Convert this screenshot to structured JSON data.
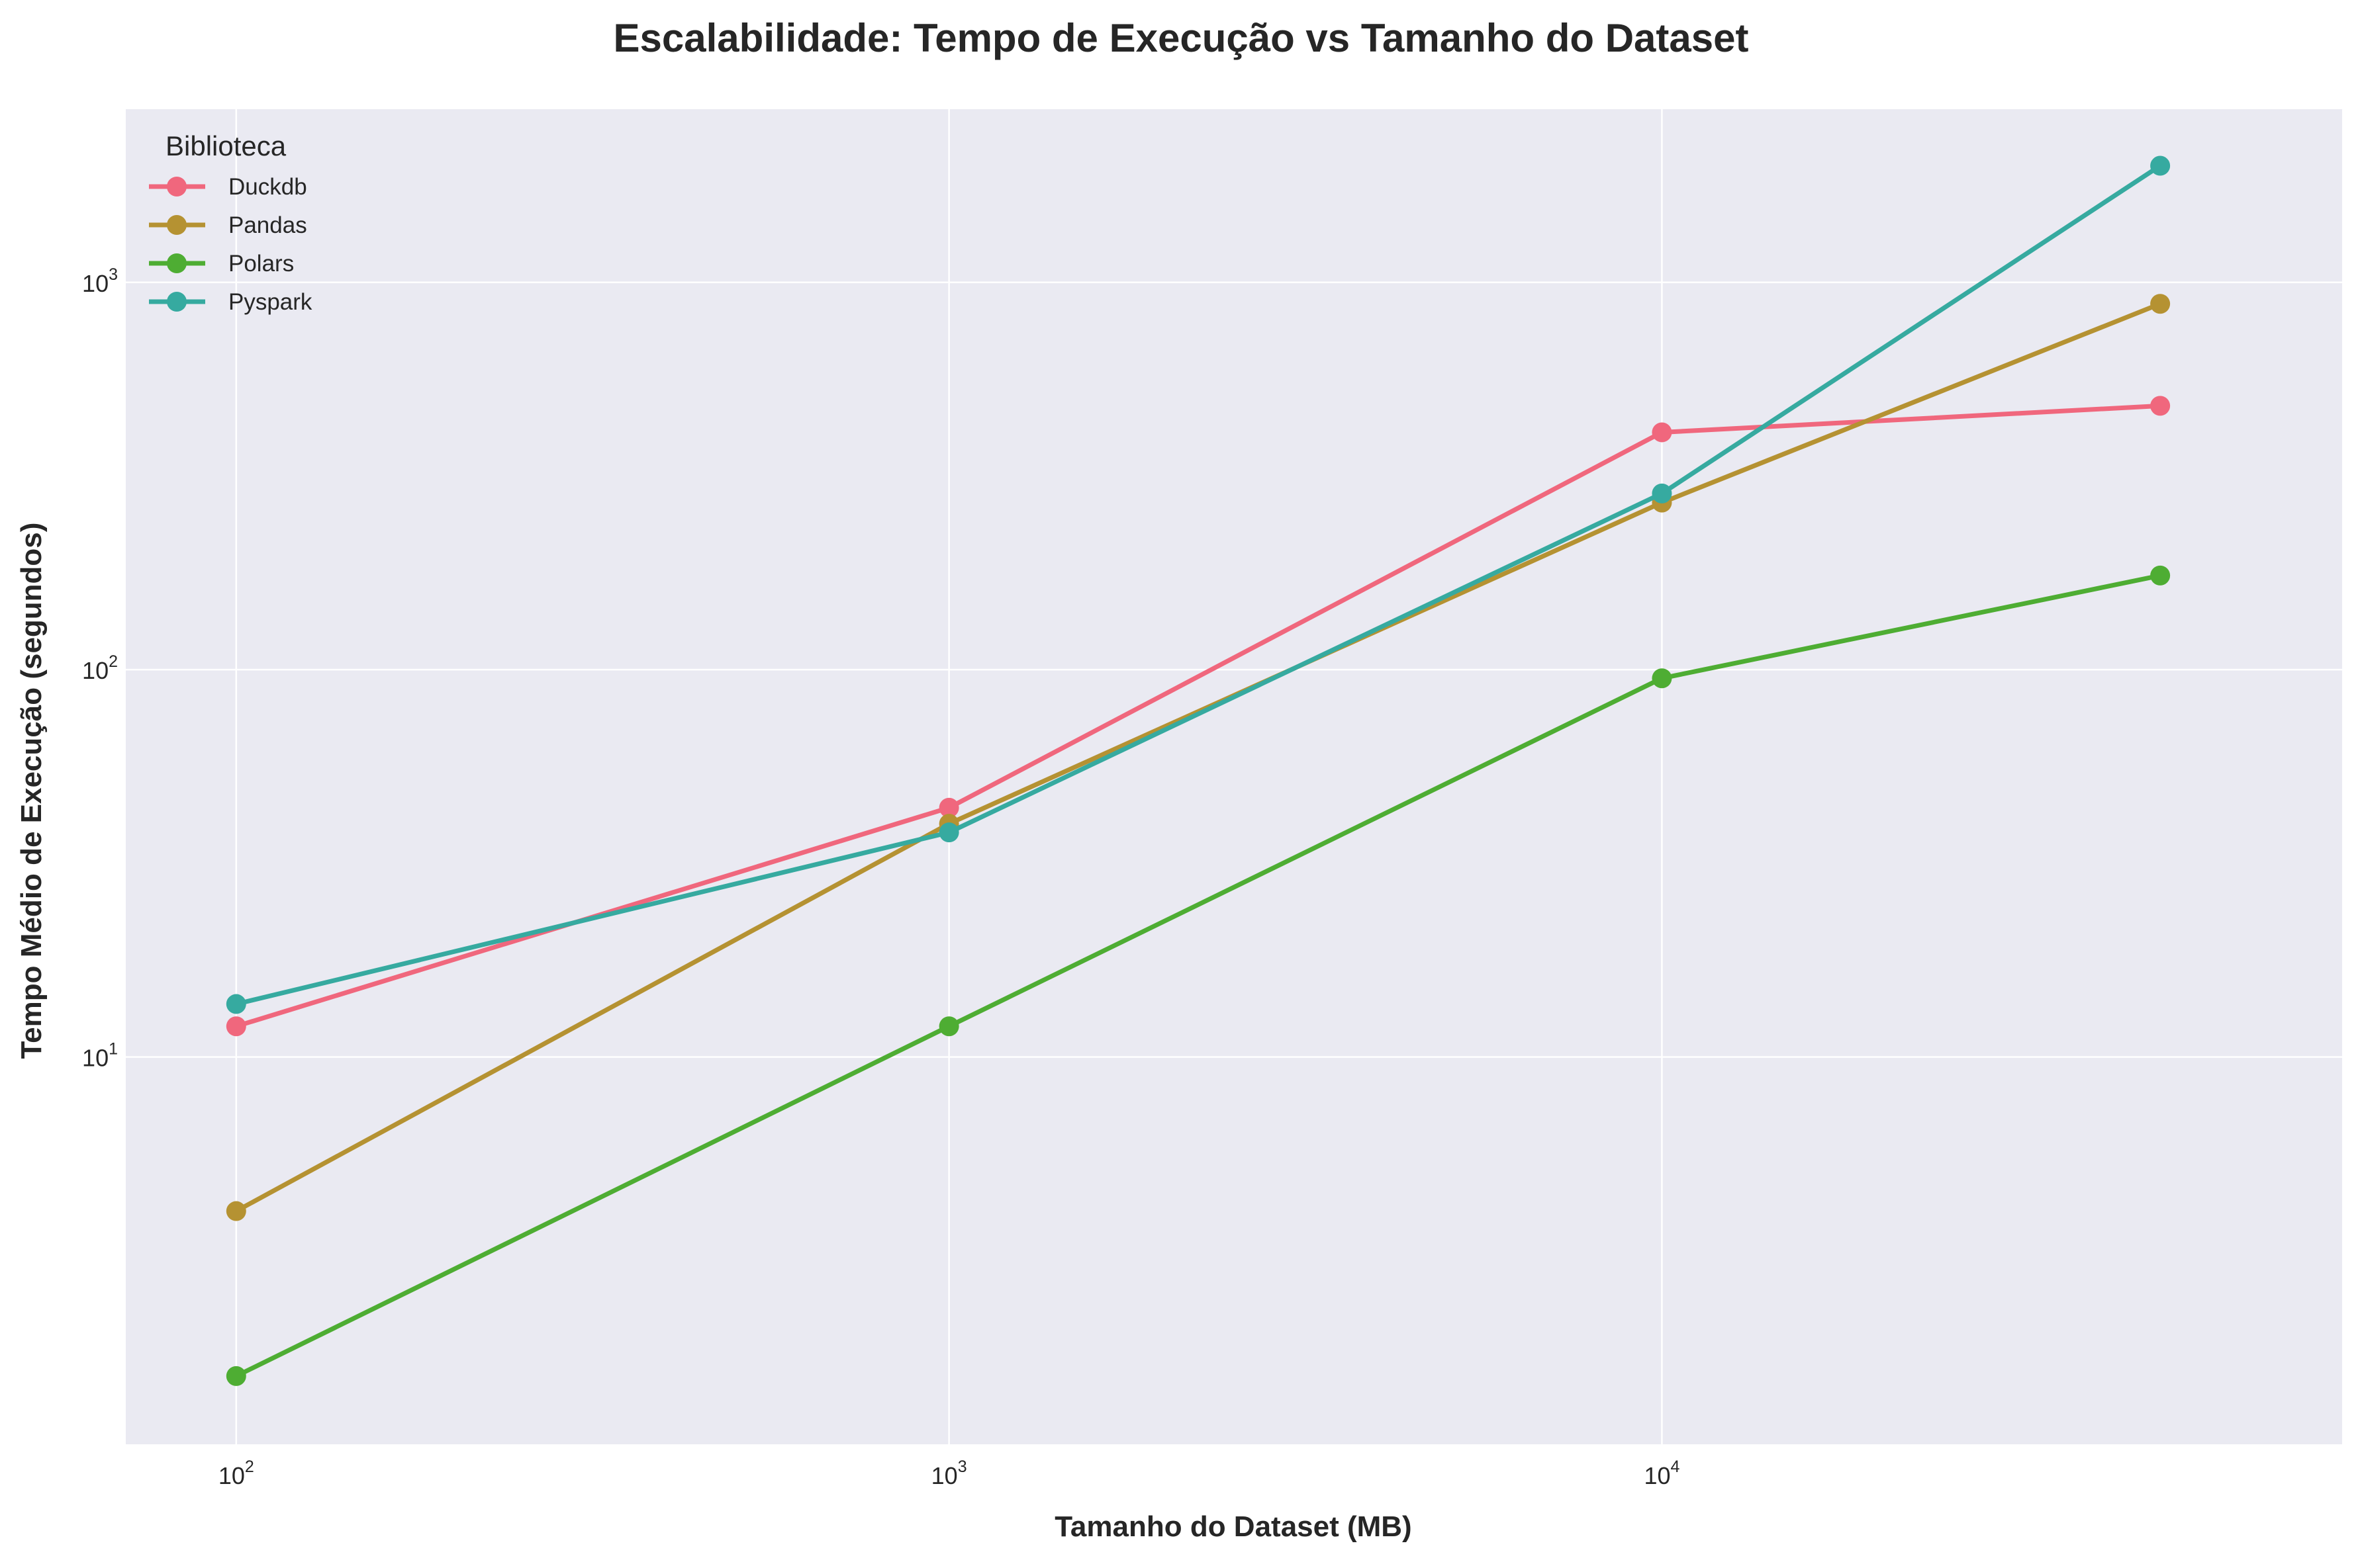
{
  "chart_data": {
    "type": "line",
    "title": "Escalabilidade: Tempo de Execução vs Tamanho do Dataset",
    "xlabel": "Tamanho do Dataset (MB)",
    "ylabel": "Tempo Médio de Execução (segundos)",
    "xscale": "log",
    "yscale": "log",
    "xlim": [
      70,
      90000
    ],
    "ylim": [
      1.0,
      2800
    ],
    "x_ticks": [
      {
        "value": 100,
        "base": "10",
        "exp": "2"
      },
      {
        "value": 1000,
        "base": "10",
        "exp": "3"
      },
      {
        "value": 10000,
        "base": "10",
        "exp": "4"
      }
    ],
    "y_ticks": [
      {
        "value": 10,
        "base": "10",
        "exp": "1"
      },
      {
        "value": 100,
        "base": "10",
        "exp": "2"
      },
      {
        "value": 1000,
        "base": "10",
        "exp": "3"
      }
    ],
    "grid": true,
    "legend": {
      "title": "Biblioteca",
      "placement": "top-left"
    },
    "x": [
      100,
      1000,
      10000,
      50000
    ],
    "series": [
      {
        "name": "Duckdb",
        "color": "#f0677d",
        "values": [
          12,
          44,
          410,
          480
        ]
      },
      {
        "name": "Pandas",
        "color": "#b59232",
        "values": [
          4.0,
          40,
          270,
          880
        ]
      },
      {
        "name": "Polars",
        "color": "#4ead33",
        "values": [
          1.5,
          12,
          95,
          175
        ]
      },
      {
        "name": "Pyspark",
        "color": "#36aaa0",
        "values": [
          13.7,
          38,
          285,
          2000
        ]
      }
    ]
  },
  "colors": {
    "plot_background": "#eaeaf2",
    "grid": "#ffffff",
    "text": "#262626"
  }
}
